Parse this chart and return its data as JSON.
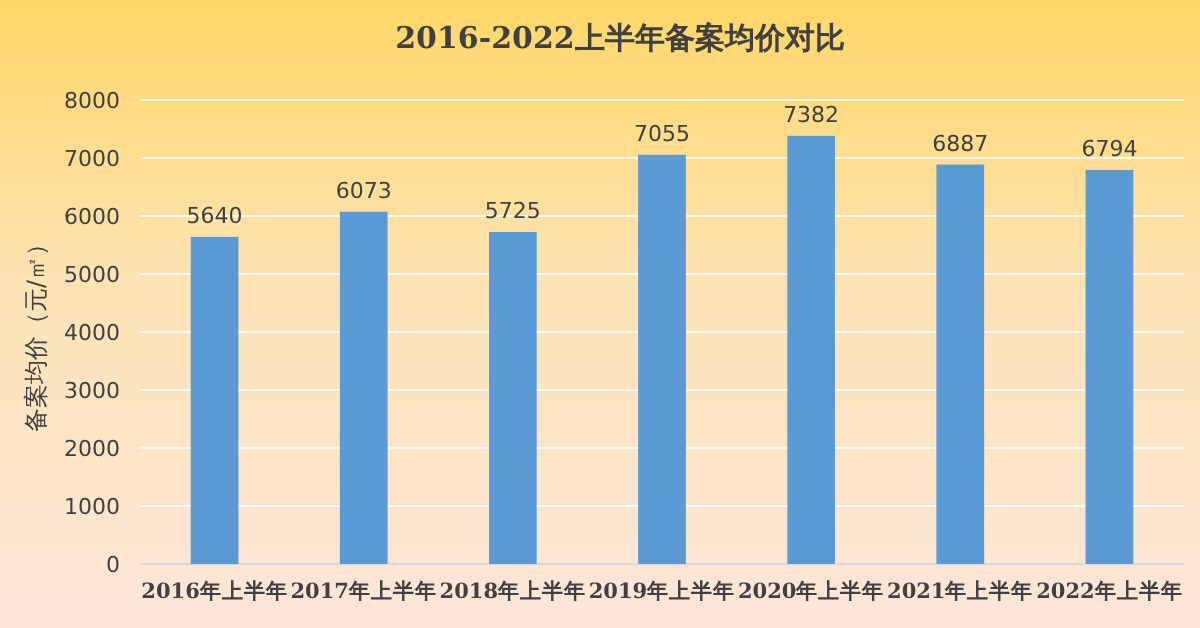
{
  "chart_data": {
    "type": "bar",
    "title": "2016-2022上半年备案均价对比",
    "ylabel": "备案均价（元/㎡）",
    "categories": [
      "2016年上半年",
      "2017年上半年",
      "2018年上半年",
      "2019年上半年",
      "2020年上半年",
      "2021年上半年",
      "2022年上半年"
    ],
    "values": [
      5640,
      6073,
      5725,
      7055,
      7382,
      6887,
      6794
    ],
    "color": "#5b9bd5",
    "ylim": [
      0,
      8000
    ],
    "yticks": [
      0,
      1000,
      2000,
      3000,
      4000,
      5000,
      6000,
      7000,
      8000
    ],
    "grid": true,
    "data_labels": true
  }
}
